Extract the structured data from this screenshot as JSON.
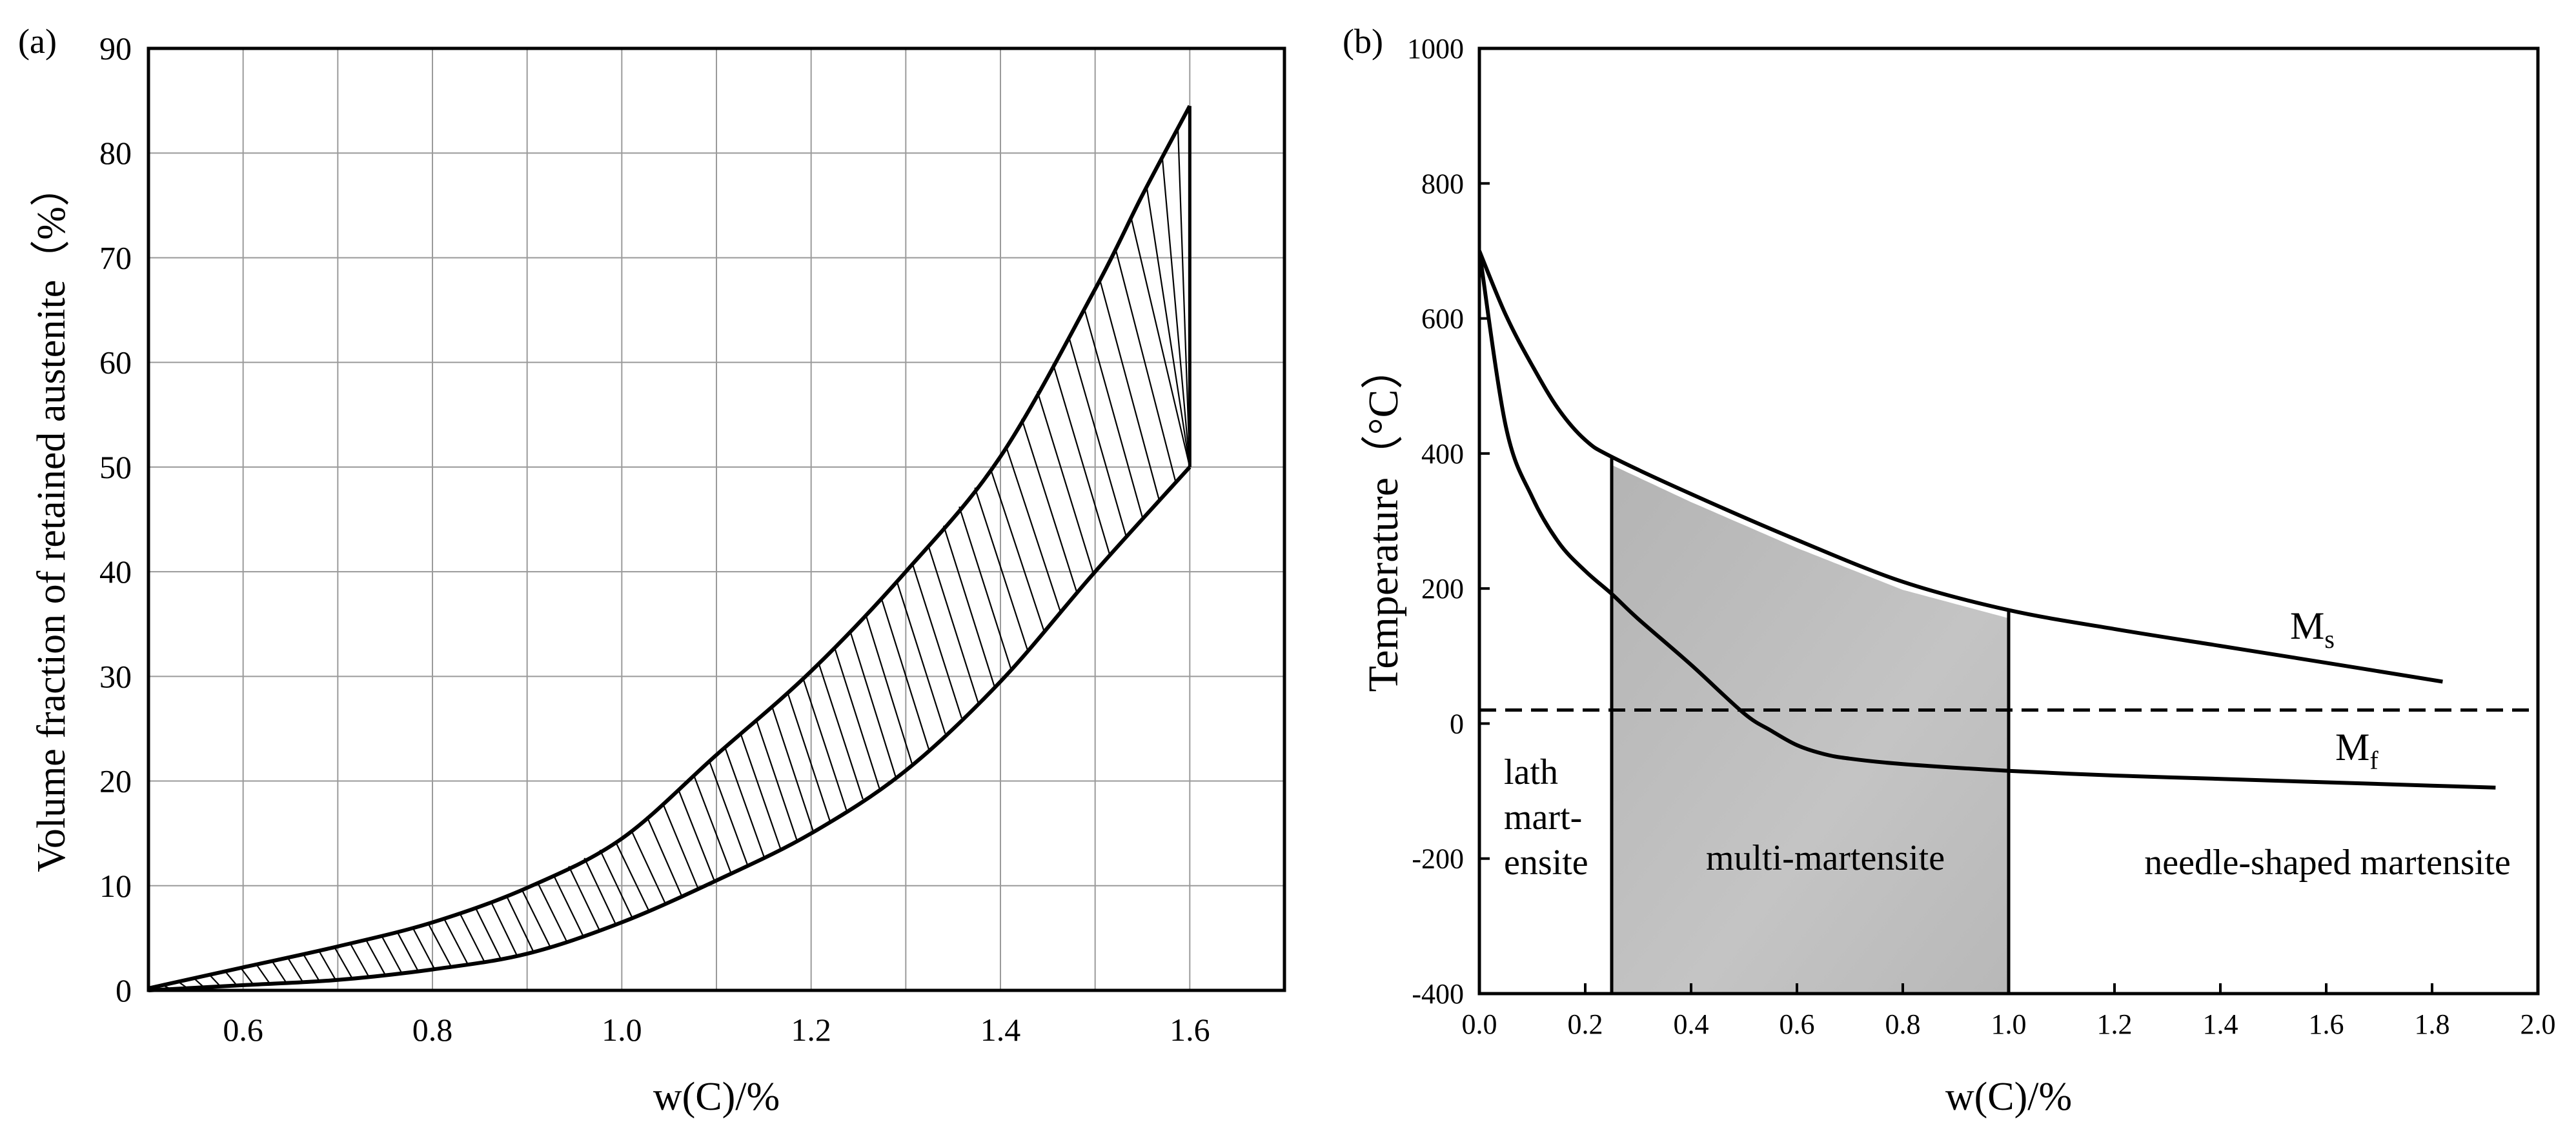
{
  "chart_data": [
    {
      "panel_label": "(a)",
      "type": "area",
      "title": "",
      "xlabel": "w(C)/%",
      "ylabel": "Volume fraction of retained austenite（%）",
      "xlim": [
        0.5,
        1.7
      ],
      "ylim": [
        0,
        90
      ],
      "grid": true,
      "xticks": [
        0.6,
        0.8,
        1.0,
        1.2,
        1.4,
        1.6
      ],
      "xtick_labels": [
        "0.6",
        "0.8",
        "1.0",
        "1.2",
        "1.4",
        "1.6"
      ],
      "yticks": [
        0,
        10,
        20,
        30,
        40,
        50,
        60,
        70,
        80,
        90
      ],
      "ytick_labels": [
        "0",
        "10",
        "20",
        "30",
        "40",
        "50",
        "60",
        "70",
        "80",
        "90"
      ],
      "series": [
        {
          "name": "upper bound",
          "x": [
            0.5,
            0.6,
            0.7,
            0.8,
            0.9,
            1.0,
            1.1,
            1.2,
            1.3,
            1.4,
            1.5,
            1.55,
            1.6
          ],
          "y": [
            0.2,
            2.2,
            4.2,
            6.5,
            9.8,
            14.5,
            22.5,
            30.5,
            40.0,
            51.0,
            67.0,
            76.0,
            84.5
          ]
        },
        {
          "name": "lower bound",
          "x": [
            0.5,
            0.6,
            0.7,
            0.8,
            0.9,
            1.0,
            1.1,
            1.2,
            1.3,
            1.4,
            1.5,
            1.6
          ],
          "y": [
            0.0,
            0.5,
            1.0,
            2.0,
            3.5,
            6.5,
            10.5,
            15.0,
            21.0,
            29.5,
            40.0,
            50.0
          ]
        }
      ]
    },
    {
      "panel_label": "(b)",
      "type": "line",
      "title": "",
      "xlabel": "w(C)/%",
      "ylabel": "Temperature（°C）",
      "xlim": [
        0.0,
        2.0
      ],
      "ylim": [
        -400,
        1000
      ],
      "grid": false,
      "xticks": [
        0.0,
        0.2,
        0.4,
        0.6,
        0.8,
        1.0,
        1.2,
        1.4,
        1.6,
        1.8,
        2.0
      ],
      "xtick_labels": [
        "0.0",
        "0.2",
        "0.4",
        "0.6",
        "0.8",
        "1.0",
        "1.2",
        "1.4",
        "1.6",
        "1.8",
        "2.0"
      ],
      "yticks": [
        -400,
        -200,
        0,
        200,
        400,
        600,
        800,
        1000
      ],
      "ytick_labels": [
        "-400",
        "-200",
        "0",
        "200",
        "400",
        "600",
        "800",
        "1000"
      ],
      "series": [
        {
          "name": "Ms",
          "label_main": "M",
          "label_sub": "s",
          "x": [
            0.0,
            0.05,
            0.1,
            0.15,
            0.2,
            0.25,
            0.4,
            0.6,
            0.8,
            1.0,
            1.2,
            1.4,
            1.6,
            1.82
          ],
          "y": [
            700,
            605,
            530,
            465,
            420,
            395,
            340,
            272,
            210,
            168,
            140,
            115,
            90,
            62
          ]
        },
        {
          "name": "Mf",
          "label_main": "M",
          "label_sub": "f",
          "x": [
            0.0,
            0.05,
            0.1,
            0.15,
            0.2,
            0.25,
            0.3,
            0.4,
            0.5,
            0.55,
            0.6,
            0.65,
            0.7,
            0.8,
            1.0,
            1.2,
            1.4,
            1.6,
            1.8,
            1.92
          ],
          "y": [
            700,
            440,
            335,
            268,
            226,
            192,
            155,
            87,
            15,
            -10,
            -32,
            -45,
            -52,
            -60,
            -70,
            -77,
            -82,
            -87,
            -92,
            -95
          ]
        }
      ],
      "reference_line": {
        "y": 20,
        "style": "dashed"
      },
      "shaded_region": {
        "x_start": 0.25,
        "x_end": 1.0,
        "color": "#bcbcbc"
      },
      "annotations": {
        "lath": [
          "lath",
          "mart-",
          "ensite"
        ],
        "multi": "multi-martensite",
        "needle": "needle-shaped martensite"
      }
    }
  ]
}
